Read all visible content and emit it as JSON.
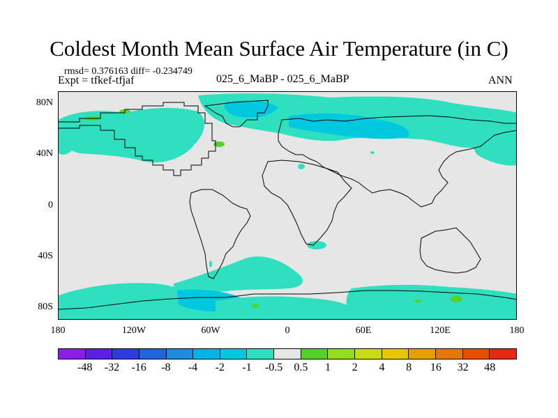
{
  "title": "Coldest Month Mean Surface Air Temperature (in C)",
  "stats": {
    "rmsd_diff": "rmsd= 0.376163 diff= -0.234749",
    "expt": "Expt = tfkef-tfjaf"
  },
  "center_title": "025_6_MaBP - 025_6_MaBP",
  "season": "ANN",
  "lat_labels": [
    "80N",
    "40N",
    "0",
    "40S",
    "80S"
  ],
  "lon_labels": [
    "180",
    "120W",
    "60W",
    "0",
    "60E",
    "120E",
    "180"
  ],
  "colors": {
    "land_bg": "#e6e6e6",
    "anomaly_neg_small": "#2fe0c0",
    "anomaly_neg_medium": "#00c8e0",
    "anomaly_pos_small": "#55d22a"
  },
  "colorbar": {
    "colors": [
      "#8a1ee6",
      "#5a1ee6",
      "#2d3cdc",
      "#1e64dc",
      "#1e8cdc",
      "#00b4e6",
      "#00c8e0",
      "#2fe0c0",
      "#e6e6e6",
      "#55d22a",
      "#96dc1e",
      "#c8dc14",
      "#e6c800",
      "#e6a000",
      "#e67800",
      "#e65000",
      "#e62814"
    ],
    "labels": [
      "-48",
      "-32",
      "-16",
      "-8",
      "-4",
      "-2",
      "-1",
      "-0.5",
      "0.5",
      "1",
      "2",
      "4",
      "8",
      "16",
      "32",
      "48"
    ]
  }
}
